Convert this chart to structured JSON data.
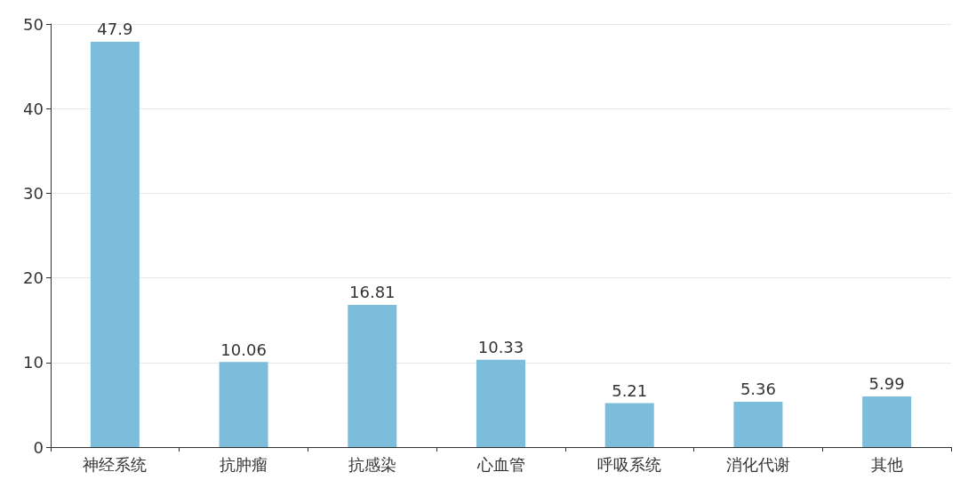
{
  "chart_data": {
    "type": "bar",
    "categories": [
      "神经系统",
      "抗肿瘤",
      "抗感染",
      "心血管",
      "呼吸系统",
      "消化代谢",
      "其他"
    ],
    "values": [
      47.9,
      10.06,
      16.81,
      10.33,
      5.21,
      5.36,
      5.99
    ],
    "color": "#7cbddb",
    "ylim": [
      0,
      50
    ],
    "yticks": [
      0,
      10,
      20,
      30,
      40,
      50
    ],
    "grid": "y",
    "data_labels": true
  }
}
